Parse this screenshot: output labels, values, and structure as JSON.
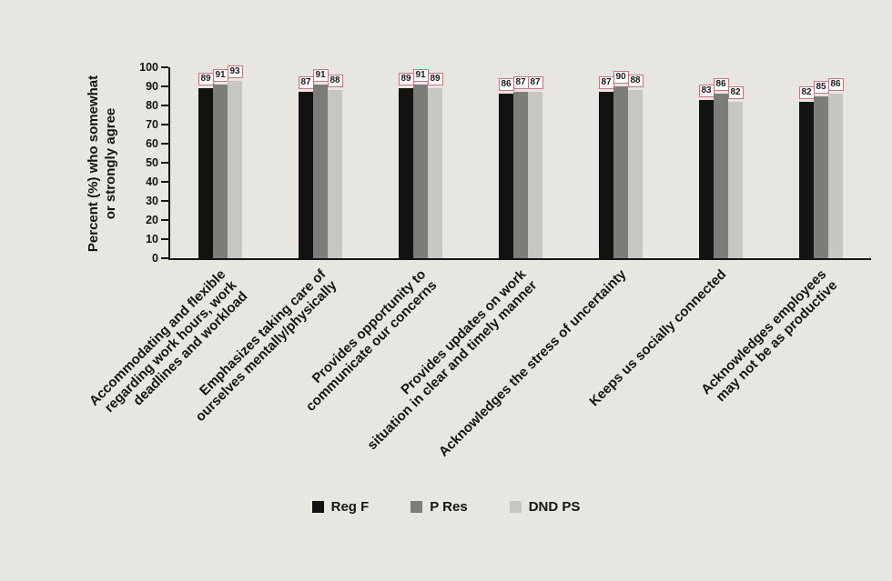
{
  "chart_data": {
    "type": "bar",
    "ylabel": "Percent (%) who somewhat\nor strongly agree",
    "ylim": [
      0,
      100
    ],
    "yticks": [
      0,
      10,
      20,
      30,
      40,
      50,
      60,
      70,
      80,
      90,
      100
    ],
    "grid": false,
    "legend_position": "bottom",
    "categories": [
      "Accommodating and flexible\nregarding work hours, work\ndeadlines and workload",
      "Emphasizes taking care of\nourselves mentally/physically",
      "Provides opportunity to\ncommunicate our concerns",
      "Provides updates on work\nsituation in clear and timely manner",
      "Acknowledges the stress of uncertainty",
      "Keeps us socially connected",
      "Acknowledges employees\nmay not be as productive"
    ],
    "series": [
      {
        "name": "Reg F",
        "color": "#121212",
        "values": [
          89,
          87,
          89,
          86,
          87,
          83,
          82
        ]
      },
      {
        "name": "P Res",
        "color": "#7e7c79",
        "values": [
          91,
          91,
          91,
          87,
          90,
          86,
          85
        ]
      },
      {
        "name": "DND PS",
        "color": "#c8c6c2",
        "values": [
          93,
          88,
          89,
          87,
          88,
          82,
          86
        ]
      }
    ],
    "data_labels": true,
    "data_label_style": {
      "background": "#ffffff",
      "border_color": "#c4767c"
    }
  },
  "colors": {
    "background": "#e8e6e1",
    "axis": "#141414",
    "text": "#141414"
  }
}
